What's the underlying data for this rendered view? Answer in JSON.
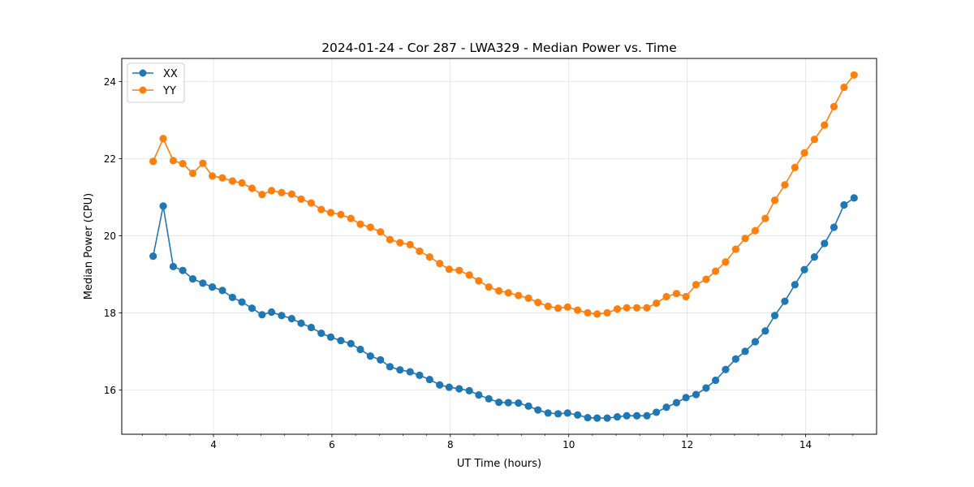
{
  "chart_data": {
    "type": "line",
    "title": "2024-01-24 - Cor 287 - LWA329 - Median Power vs. Time",
    "xlabel": "UT Time (hours)",
    "ylabel": "Median Power (CPU)",
    "xlim": [
      2.45,
      15.2
    ],
    "ylim": [
      14.85,
      24.6
    ],
    "xticks": [
      4,
      6,
      8,
      10,
      12,
      14
    ],
    "yticks": [
      16,
      18,
      20,
      22,
      24
    ],
    "x_minor_step": 0.4,
    "grid": true,
    "legend_position": "top-left",
    "x": [
      2.98,
      3.15,
      3.32,
      3.48,
      3.65,
      3.82,
      3.98,
      4.15,
      4.32,
      4.48,
      4.65,
      4.82,
      4.98,
      5.15,
      5.32,
      5.48,
      5.65,
      5.82,
      5.98,
      6.15,
      6.32,
      6.48,
      6.65,
      6.82,
      6.98,
      7.15,
      7.32,
      7.48,
      7.65,
      7.82,
      7.98,
      8.15,
      8.32,
      8.48,
      8.65,
      8.82,
      8.98,
      9.15,
      9.32,
      9.48,
      9.65,
      9.82,
      9.98,
      10.15,
      10.32,
      10.48,
      10.65,
      10.82,
      10.98,
      11.15,
      11.32,
      11.48,
      11.65,
      11.82,
      11.98,
      12.15,
      12.32,
      12.48,
      12.65,
      12.82,
      12.98,
      13.15,
      13.32,
      13.48,
      13.65,
      13.82,
      13.98,
      14.15,
      14.32,
      14.48,
      14.65,
      14.82
    ],
    "series": [
      {
        "name": "XX",
        "color": "#1f77b4",
        "values": [
          19.47,
          20.77,
          19.2,
          19.1,
          18.88,
          18.77,
          18.67,
          18.58,
          18.4,
          18.28,
          18.12,
          17.95,
          18.02,
          17.93,
          17.85,
          17.73,
          17.62,
          17.47,
          17.37,
          17.28,
          17.2,
          17.05,
          16.88,
          16.78,
          16.6,
          16.52,
          16.47,
          16.38,
          16.27,
          16.13,
          16.07,
          16.03,
          15.98,
          15.87,
          15.77,
          15.68,
          15.67,
          15.66,
          15.58,
          15.48,
          15.4,
          15.38,
          15.4,
          15.35,
          15.28,
          15.27,
          15.27,
          15.3,
          15.33,
          15.33,
          15.33,
          15.42,
          15.55,
          15.67,
          15.8,
          15.88,
          16.05,
          16.25,
          16.53,
          16.8,
          17.0,
          17.25,
          17.53,
          17.93,
          18.3,
          18.73,
          19.12,
          19.45,
          19.8,
          20.22,
          20.8,
          20.98
        ]
      },
      {
        "name": "YY",
        "color": "#ff7f0e",
        "values": [
          21.93,
          22.52,
          21.95,
          21.87,
          21.62,
          21.88,
          21.55,
          21.5,
          21.42,
          21.37,
          21.23,
          21.07,
          21.17,
          21.12,
          21.08,
          20.95,
          20.85,
          20.68,
          20.6,
          20.55,
          20.45,
          20.3,
          20.22,
          20.1,
          19.9,
          19.82,
          19.77,
          19.6,
          19.45,
          19.28,
          19.13,
          19.1,
          18.98,
          18.83,
          18.67,
          18.57,
          18.52,
          18.45,
          18.38,
          18.27,
          18.17,
          18.12,
          18.15,
          18.07,
          18.0,
          17.97,
          18.0,
          18.1,
          18.13,
          18.13,
          18.13,
          18.25,
          18.42,
          18.5,
          18.42,
          18.73,
          18.87,
          19.08,
          19.32,
          19.65,
          19.93,
          20.13,
          20.45,
          20.92,
          21.32,
          21.77,
          22.15,
          22.5,
          22.87,
          23.35,
          23.85,
          24.17
        ]
      }
    ]
  }
}
